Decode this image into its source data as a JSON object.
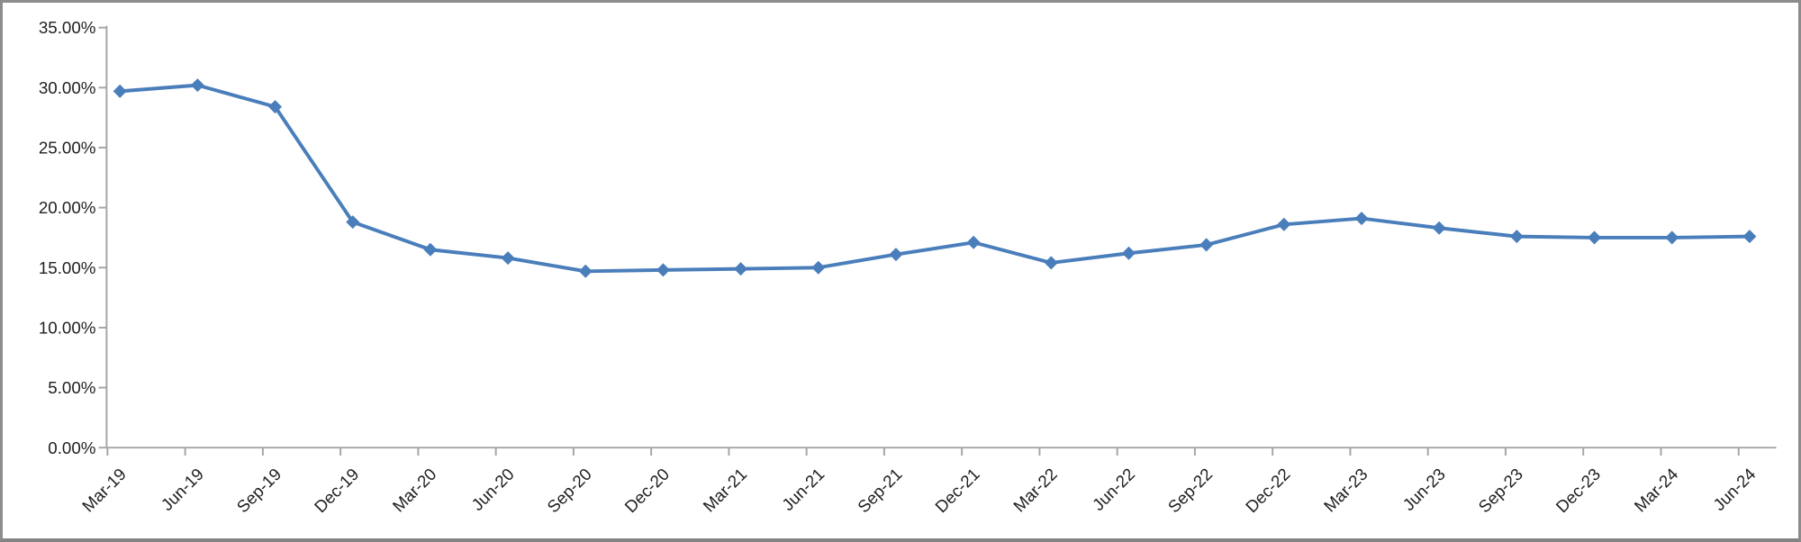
{
  "chart_data": {
    "type": "line",
    "title": "",
    "xlabel": "",
    "ylabel": "",
    "legend": "none",
    "grid": false,
    "marker": "diamond",
    "values_unit": "%",
    "categories": [
      "Mar-19",
      "Jun-19",
      "Sep-19",
      "Dec-19",
      "Mar-20",
      "Jun-20",
      "Sep-20",
      "Dec-20",
      "Mar-21",
      "Jun-21",
      "Sep-21",
      "Dec-21",
      "Mar-22",
      "Jun-22",
      "Sep-22",
      "Dec-22",
      "Mar-23",
      "Jun-23",
      "Sep-23",
      "Dec-23",
      "Mar-24",
      "Jun-24"
    ],
    "values": [
      29.7,
      30.2,
      28.4,
      18.8,
      16.5,
      15.8,
      14.7,
      14.8,
      14.9,
      15.0,
      16.1,
      17.1,
      15.4,
      16.2,
      16.9,
      18.6,
      19.1,
      18.3,
      17.6,
      17.5,
      17.5,
      17.6
    ],
    "ylim": [
      0,
      35
    ],
    "y_ticks": {
      "values": [
        0,
        5,
        10,
        15,
        20,
        25,
        30,
        35
      ],
      "labels": [
        "0.00%",
        "5.00%",
        "10.00%",
        "15.00%",
        "20.00%",
        "25.00%",
        "30.00%",
        "35.00%"
      ]
    },
    "colors": {
      "series": "#4A7EBB",
      "axis_line": "#A6A6A6",
      "tick_text": "#1F1F1F",
      "frame_border": "#8C8C8C",
      "background": "#FFFFFF"
    }
  }
}
